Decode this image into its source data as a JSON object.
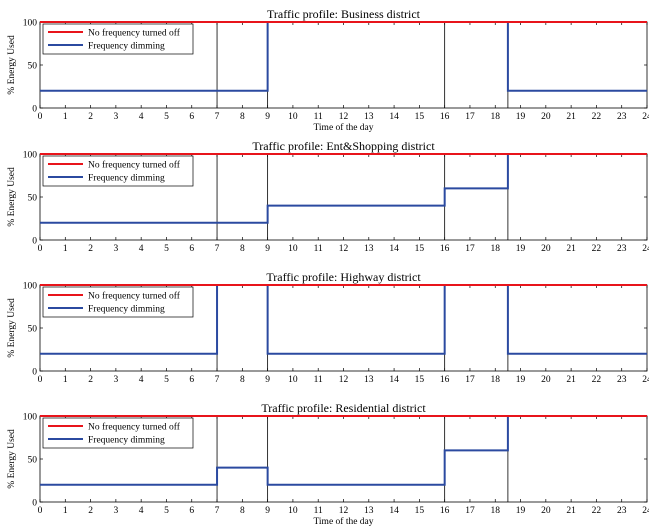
{
  "chart_data": [
    {
      "type": "line",
      "title": "Traffic profile: Business district",
      "xlabel": "Time of the day",
      "ylabel": "% Energy Used",
      "xlim": [
        0,
        24
      ],
      "ylim": [
        0,
        100
      ],
      "xticks": [
        "0",
        "1",
        "2",
        "3",
        "4",
        "5",
        "6",
        "7",
        "8",
        "9",
        "10",
        "11",
        "12",
        "13",
        "14",
        "15",
        "16",
        "17",
        "18",
        "19",
        "20",
        "21",
        "22",
        "23",
        "24"
      ],
      "yticks": [
        "0",
        "50",
        "100"
      ],
      "vlines": [
        7,
        9,
        16,
        18.5
      ],
      "legend": {
        "position": "top-left"
      },
      "series": [
        {
          "name": "No frequency turned off",
          "color": "#e8141b",
          "x": [
            0,
            24
          ],
          "y": [
            100,
            100
          ]
        },
        {
          "name": "Frequency dimming",
          "color": "#2b4aa0",
          "x": [
            0,
            9,
            9,
            16,
            16,
            18.5,
            18.5,
            24
          ],
          "y": [
            20,
            20,
            100,
            100,
            100,
            100,
            20,
            20
          ]
        }
      ]
    },
    {
      "type": "line",
      "title": "Traffic profile: Ent&Shopping district",
      "xlabel": "",
      "ylabel": "% Energy Used",
      "xlim": [
        0,
        24
      ],
      "ylim": [
        0,
        100
      ],
      "xticks": [
        "0",
        "1",
        "2",
        "3",
        "4",
        "5",
        "6",
        "7",
        "8",
        "9",
        "10",
        "11",
        "12",
        "13",
        "14",
        "15",
        "16",
        "17",
        "18",
        "19",
        "20",
        "21",
        "22",
        "23",
        "24"
      ],
      "yticks": [
        "0",
        "50",
        "100"
      ],
      "vlines": [
        7,
        9,
        16,
        18.5
      ],
      "legend": {
        "position": "top-left"
      },
      "series": [
        {
          "name": "No frequency turned off",
          "color": "#e8141b",
          "x": [
            0,
            24
          ],
          "y": [
            100,
            100
          ]
        },
        {
          "name": "Frequency dimming",
          "color": "#2b4aa0",
          "x": [
            0,
            9,
            9,
            16,
            16,
            18.5,
            18.5,
            24
          ],
          "y": [
            20,
            20,
            40,
            40,
            60,
            60,
            100,
            100
          ]
        }
      ]
    },
    {
      "type": "line",
      "title": "Traffic profile: Highway district",
      "xlabel": "",
      "ylabel": "% Energy Used",
      "xlim": [
        0,
        24
      ],
      "ylim": [
        0,
        100
      ],
      "xticks": [
        "0",
        "1",
        "2",
        "3",
        "4",
        "5",
        "6",
        "7",
        "8",
        "9",
        "10",
        "11",
        "12",
        "13",
        "14",
        "15",
        "16",
        "17",
        "18",
        "19",
        "20",
        "21",
        "22",
        "23",
        "24"
      ],
      "yticks": [
        "0",
        "50",
        "100"
      ],
      "vlines": [
        7,
        9,
        16,
        18.5
      ],
      "legend": {
        "position": "top-left"
      },
      "series": [
        {
          "name": "No frequency turned off",
          "color": "#e8141b",
          "x": [
            0,
            24
          ],
          "y": [
            100,
            100
          ]
        },
        {
          "name": "Frequency dimming",
          "color": "#2b4aa0",
          "x": [
            0,
            7,
            7,
            9,
            9,
            16,
            16,
            18.5,
            18.5,
            24
          ],
          "y": [
            20,
            20,
            100,
            100,
            20,
            20,
            100,
            100,
            20,
            20
          ]
        }
      ]
    },
    {
      "type": "line",
      "title": "Traffic profile: Residential district",
      "xlabel": "Time of the day",
      "ylabel": "% Energy Used",
      "xlim": [
        0,
        24
      ],
      "ylim": [
        0,
        100
      ],
      "xticks": [
        "0",
        "1",
        "2",
        "3",
        "4",
        "5",
        "6",
        "7",
        "8",
        "9",
        "10",
        "11",
        "12",
        "13",
        "14",
        "15",
        "16",
        "17",
        "18",
        "19",
        "20",
        "21",
        "22",
        "23",
        "24"
      ],
      "yticks": [
        "0",
        "50",
        "100"
      ],
      "vlines": [
        7,
        9,
        16,
        18.5
      ],
      "legend": {
        "position": "top-left"
      },
      "series": [
        {
          "name": "No frequency turned off",
          "color": "#e8141b",
          "x": [
            0,
            24
          ],
          "y": [
            100,
            100
          ]
        },
        {
          "name": "Frequency dimming",
          "color": "#2b4aa0",
          "x": [
            0,
            7,
            7,
            9,
            9,
            16,
            16,
            18.5,
            18.5,
            24
          ],
          "y": [
            20,
            20,
            40,
            40,
            20,
            20,
            60,
            60,
            100,
            100
          ]
        }
      ]
    }
  ]
}
